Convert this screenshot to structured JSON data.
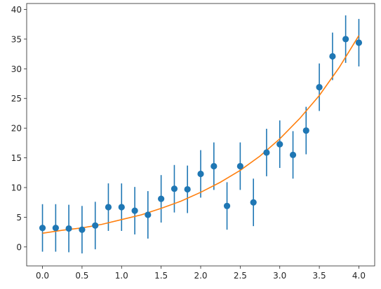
{
  "chart_data": {
    "type": "scatter",
    "title": "",
    "xlabel": "",
    "ylabel": "",
    "xlim": [
      -0.2,
      4.2
    ],
    "ylim": [
      -3.2,
      41
    ],
    "xticks": [
      0.0,
      0.5,
      1.0,
      1.5,
      2.0,
      2.5,
      3.0,
      3.5,
      4.0
    ],
    "xtick_labels": [
      "0.0",
      "0.5",
      "1.0",
      "1.5",
      "2.0",
      "2.5",
      "3.0",
      "3.5",
      "4.0"
    ],
    "yticks": [
      0,
      5,
      10,
      15,
      20,
      25,
      30,
      35,
      40
    ],
    "ytick_labels": [
      "0",
      "5",
      "10",
      "15",
      "20",
      "25",
      "30",
      "35",
      "40"
    ],
    "grid": false,
    "legend": "none",
    "colors": {
      "points": "#1f77b4",
      "fit": "#ff7f0e",
      "axes": "#262626"
    },
    "series": [
      {
        "kind": "errorbar-scatter",
        "x": [
          0.0,
          0.167,
          0.333,
          0.5,
          0.667,
          0.833,
          1.0,
          1.167,
          1.333,
          1.5,
          1.667,
          1.833,
          2.0,
          2.167,
          2.333,
          2.5,
          2.667,
          2.833,
          3.0,
          3.167,
          3.333,
          3.5,
          3.667,
          3.833,
          4.0
        ],
        "y": [
          3.2,
          3.2,
          3.1,
          2.9,
          3.6,
          6.7,
          6.7,
          6.1,
          5.4,
          8.1,
          9.8,
          9.7,
          12.3,
          13.6,
          6.9,
          13.6,
          7.5,
          15.9,
          17.3,
          15.5,
          19.6,
          26.9,
          32.1,
          35.0,
          34.4
        ],
        "yerr": [
          4.0,
          4.0,
          4.0,
          4.0,
          4.0,
          4.0,
          4.0,
          4.0,
          4.0,
          4.0,
          4.0,
          4.0,
          4.0,
          4.0,
          4.0,
          4.0,
          4.0,
          4.0,
          4.0,
          4.0,
          4.0,
          4.0,
          4.0,
          4.0,
          4.0
        ]
      },
      {
        "kind": "line",
        "x": [
          0.0,
          0.25,
          0.5,
          0.75,
          1.0,
          1.25,
          1.5,
          1.75,
          2.0,
          2.25,
          2.5,
          2.75,
          3.0,
          3.25,
          3.5,
          3.75,
          4.0
        ],
        "y": [
          2.3,
          2.8,
          3.2,
          3.8,
          4.6,
          5.4,
          6.5,
          7.7,
          9.2,
          10.9,
          12.9,
          15.3,
          18.2,
          21.6,
          25.5,
          30.2,
          35.6
        ]
      }
    ]
  }
}
